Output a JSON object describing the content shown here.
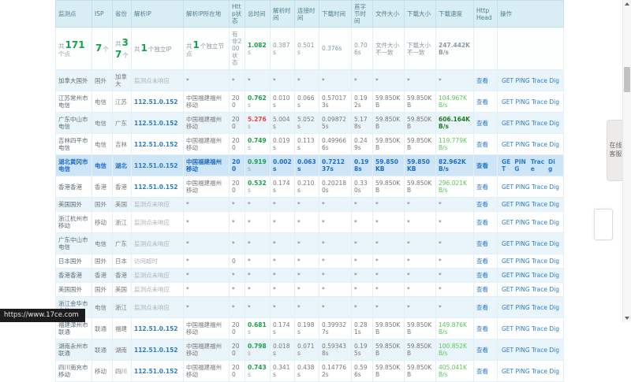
{
  "colors": {
    "header_bg": "#d8edf4",
    "header_text": "#50808f",
    "row_alt_bg": "#eaf5fb",
    "selected_row_bg": "#cde5f6",
    "selected_row_text": "#1f6cc5",
    "link_blue": "#2a7cc9",
    "green": "#16a24a",
    "bright_green": "#57c957",
    "dark_green": "#1f7a1f",
    "orange": "#f0a030",
    "red": "#e8433e"
  },
  "table": {
    "headers": [
      "监测点",
      "ISP",
      "省份",
      "解析IP",
      "解析IP所在地",
      "Http状态",
      "总时间",
      "解析时间",
      "连接时间",
      "下载时间",
      "首字节时间",
      "文件大小",
      "下载大小",
      "下载速度",
      "Http Head",
      "操作"
    ],
    "summary": {
      "points": {
        "pre": "共",
        "num": "171",
        "post": "个点"
      },
      "isp": {
        "pre": "",
        "num": "7",
        "post": "个"
      },
      "provinces": {
        "pre": "共",
        "num": "37",
        "post": "个"
      },
      "ips": {
        "pre": "共",
        "num": "1",
        "post": "个独立IP"
      },
      "nodes": {
        "pre": "共",
        "num": "1",
        "post": "个独立节点"
      },
      "status": "有非200状态",
      "total": "1.082s",
      "resolve": "0.387s",
      "connect": "0.501s",
      "download": "0.376s",
      "firstbyte": "0.706s",
      "filesize": "文件大小不一致",
      "dlsize": "下载大小不一致",
      "speed": "247.442KB/s"
    },
    "rows": [
      {
        "name": "加拿大国外",
        "isp": "国外",
        "province": "加拿大",
        "ip": "监测点未响应",
        "ip_link": false,
        "location": "*",
        "status": "*",
        "total": "*",
        "total_color": "",
        "resolve": "*",
        "connect": "*",
        "download": "*",
        "firstbyte": "*",
        "filesize": "*",
        "dlsize": "*",
        "speed": "*",
        "speed_color": "",
        "alt": true,
        "selected": false
      },
      {
        "name": "江苏常州市电信",
        "isp": "电信",
        "province": "江苏",
        "ip": "112.51.0.152",
        "ip_link": true,
        "location": "中国福建福州移动",
        "status": "200",
        "total": "0.762s",
        "total_color": "green",
        "resolve": "0.010s",
        "connect": "0.066s",
        "download": "0.570173s",
        "firstbyte": "0.192s",
        "filesize": "59.850KB",
        "dlsize": "59.850KB",
        "speed": "104.967KB/s",
        "speed_color": "bright",
        "alt": false,
        "selected": false
      },
      {
        "name": "广东中山市电信",
        "isp": "电信",
        "province": "广东",
        "ip": "112.51.0.152",
        "ip_link": true,
        "location": "中国福建福州移动",
        "status": "200",
        "total": "5.276s",
        "total_color": "red",
        "resolve": "5.004s",
        "connect": "5.052s",
        "download": "0.098725s",
        "firstbyte": "5.178s",
        "filesize": "59.850KB",
        "dlsize": "59.850KB",
        "speed": "606.164KB/s",
        "speed_color": "dark",
        "alt": true,
        "selected": false
      },
      {
        "name": "吉林四平市电信",
        "isp": "电信",
        "province": "吉林",
        "ip": "112.51.0.152",
        "ip_link": true,
        "location": "中国福建福州移动",
        "status": "200",
        "total": "0.749s",
        "total_color": "green",
        "resolve": "0.019s",
        "connect": "0.113s",
        "download": "0.499666s",
        "firstbyte": "0.249s",
        "filesize": "59.850KB",
        "dlsize": "59.850KB",
        "speed": "119.779KB/s",
        "speed_color": "bright",
        "alt": false,
        "selected": false
      },
      {
        "name": "湖北黄冈市电信",
        "isp": "电信",
        "province": "湖北",
        "ip": "112.51.0.152",
        "ip_link": true,
        "location": "中国福建福州移动",
        "status": "200",
        "total": "0.919s",
        "total_color": "green",
        "resolve": "0.002s",
        "connect": "0.063s",
        "download": "0.721237s",
        "firstbyte": "0.198s",
        "filesize": "59.850KB",
        "dlsize": "59.850KB",
        "speed": "82.962KB/s",
        "speed_color": "orange",
        "alt": false,
        "selected": true
      },
      {
        "name": "香港香港",
        "isp": "香港",
        "province": "香港",
        "ip": "112.51.0.152",
        "ip_link": true,
        "location": "中国福建福州移动",
        "status": "200",
        "total": "0.532s",
        "total_color": "green",
        "resolve": "0.174s",
        "connect": "0.210s",
        "download": "0.202180s",
        "firstbyte": "0.330s",
        "filesize": "59.850KB",
        "dlsize": "59.850KB",
        "speed": "296.021KB/s",
        "speed_color": "bright",
        "alt": false,
        "selected": false
      },
      {
        "name": "美国国外",
        "isp": "国外",
        "province": "美国",
        "ip": "监测点未响应",
        "ip_link": false,
        "location": "*",
        "status": "*",
        "total": "*",
        "total_color": "",
        "resolve": "*",
        "connect": "*",
        "download": "*",
        "firstbyte": "*",
        "filesize": "*",
        "dlsize": "*",
        "speed": "*",
        "speed_color": "",
        "alt": true,
        "selected": false
      },
      {
        "name": "浙江杭州市移动",
        "isp": "移动",
        "province": "浙江",
        "ip": "监测点未响应",
        "ip_link": false,
        "location": "*",
        "status": "*",
        "total": "*",
        "total_color": "",
        "resolve": "*",
        "connect": "*",
        "download": "*",
        "firstbyte": "*",
        "filesize": "*",
        "dlsize": "*",
        "speed": "*",
        "speed_color": "",
        "alt": false,
        "selected": false
      },
      {
        "name": "广东中山市电信",
        "isp": "电信",
        "province": "广东",
        "ip": "监测点未响应",
        "ip_link": false,
        "location": "*",
        "status": "*",
        "total": "*",
        "total_color": "",
        "resolve": "*",
        "connect": "*",
        "download": "*",
        "firstbyte": "*",
        "filesize": "*",
        "dlsize": "*",
        "speed": "*",
        "speed_color": "",
        "alt": true,
        "selected": false
      },
      {
        "name": "日本国外",
        "isp": "国外",
        "province": "日本",
        "ip": "访问超时",
        "ip_link": false,
        "location": "*",
        "status": "0",
        "total": "*",
        "total_color": "",
        "resolve": "*",
        "connect": "*",
        "download": "*",
        "firstbyte": "*",
        "filesize": "*",
        "dlsize": "*",
        "speed": "*",
        "speed_color": "",
        "alt": false,
        "selected": false
      },
      {
        "name": "香港香港",
        "isp": "香港",
        "province": "香港",
        "ip": "监测点未响应",
        "ip_link": false,
        "location": "*",
        "status": "*",
        "total": "*",
        "total_color": "",
        "resolve": "*",
        "connect": "*",
        "download": "*",
        "firstbyte": "*",
        "filesize": "*",
        "dlsize": "*",
        "speed": "*",
        "speed_color": "",
        "alt": true,
        "selected": false
      },
      {
        "name": "美国国外",
        "isp": "国外",
        "province": "美国",
        "ip": "监测点未响应",
        "ip_link": false,
        "location": "*",
        "status": "*",
        "total": "*",
        "total_color": "",
        "resolve": "*",
        "connect": "*",
        "download": "*",
        "firstbyte": "*",
        "filesize": "*",
        "dlsize": "*",
        "speed": "*",
        "speed_color": "",
        "alt": false,
        "selected": false
      },
      {
        "name": "浙江金华市电信",
        "isp": "电信",
        "province": "浙江",
        "ip": "监测点未响应",
        "ip_link": false,
        "location": "*",
        "status": "*",
        "total": "*",
        "total_color": "",
        "resolve": "*",
        "connect": "*",
        "download": "*",
        "firstbyte": "*",
        "filesize": "*",
        "dlsize": "*",
        "speed": "*",
        "speed_color": "",
        "alt": true,
        "selected": false
      },
      {
        "name": "福建漳州市联通",
        "isp": "联通",
        "province": "福建",
        "ip": "112.51.0.152",
        "ip_link": true,
        "location": "中国福建福州移动",
        "status": "200",
        "total": "0.681s",
        "total_color": "green",
        "resolve": "0.174s",
        "connect": "0.198s",
        "download": "0.399327s",
        "firstbyte": "0.281s",
        "filesize": "59.850KB",
        "dlsize": "59.850KB",
        "speed": "149.876KB/s",
        "speed_color": "bright",
        "alt": false,
        "selected": false
      },
      {
        "name": "湖南永州市联通",
        "isp": "联通",
        "province": "湖南",
        "ip": "112.51.0.152",
        "ip_link": true,
        "location": "中国福建福州移动",
        "status": "200",
        "total": "0.798s",
        "total_color": "green",
        "resolve": "0.018s",
        "connect": "0.071s",
        "download": "0.593438s",
        "firstbyte": "0.195s",
        "filesize": "59.850KB",
        "dlsize": "59.850KB",
        "speed": "100.852KB/s",
        "speed_color": "bright",
        "alt": true,
        "selected": false
      },
      {
        "name": "四川南充市移动",
        "isp": "移动",
        "province": "四川",
        "ip": "112.51.0.152",
        "ip_link": true,
        "location": "中国福建福州移动",
        "status": "200",
        "total": "0.743s",
        "total_color": "green",
        "resolve": "0.341s",
        "connect": "0.438s",
        "download": "0.147762s",
        "firstbyte": "0.596s",
        "filesize": "59.850KB",
        "dlsize": "59.850KB",
        "speed": "405.041KB/s",
        "speed_color": "bright",
        "alt": false,
        "selected": false
      }
    ],
    "view_label": "查看",
    "ops": [
      "GET",
      "PING",
      "Trace",
      "Dig"
    ]
  },
  "widgets": {
    "customer_service": "在线客服",
    "tooltip_url": "https://www.17ce.com"
  }
}
